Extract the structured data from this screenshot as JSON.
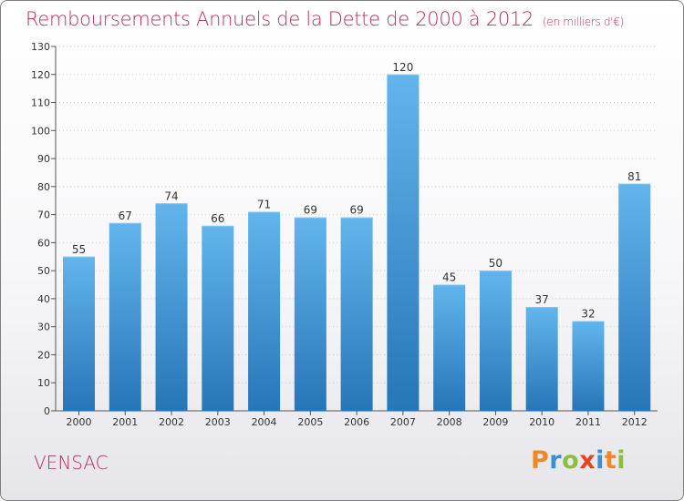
{
  "header": {
    "title": "Remboursements Annuels de la Dette de 2000 à 2012",
    "subtitle": "(en milliers d'€)"
  },
  "footer": {
    "town": "VENSAC",
    "logo_letters": [
      {
        "char": "P",
        "color": "#f0882a"
      },
      {
        "char": "r",
        "color": "#3f8fd0"
      },
      {
        "char": "o",
        "color": "#8cbf3f"
      },
      {
        "char": "x",
        "color": "#e8431f"
      },
      {
        "char": "i",
        "color": "#3f8fd0"
      },
      {
        "char": "t",
        "color": "#f0882a"
      },
      {
        "char": "i",
        "color": "#8cbf3f"
      }
    ]
  },
  "colors": {
    "title": "#b5305e",
    "bar_top": "#62b5ec",
    "bar_bottom": "#2676b8",
    "grid": "#cccccc"
  },
  "chart_data": {
    "type": "bar",
    "categories": [
      "2000",
      "2001",
      "2002",
      "2003",
      "2004",
      "2005",
      "2006",
      "2007",
      "2008",
      "2009",
      "2010",
      "2011",
      "2012"
    ],
    "values": [
      55,
      67,
      74,
      66,
      71,
      69,
      69,
      120,
      45,
      50,
      37,
      32,
      81
    ],
    "title": "Remboursements Annuels de la Dette de 2000 à 2012",
    "subtitle": "(en milliers d'€)",
    "ylim": [
      0,
      130
    ],
    "yticks": [
      0,
      10,
      20,
      30,
      40,
      50,
      60,
      70,
      80,
      90,
      100,
      110,
      120,
      130
    ],
    "grid": true,
    "data_labels": true
  }
}
